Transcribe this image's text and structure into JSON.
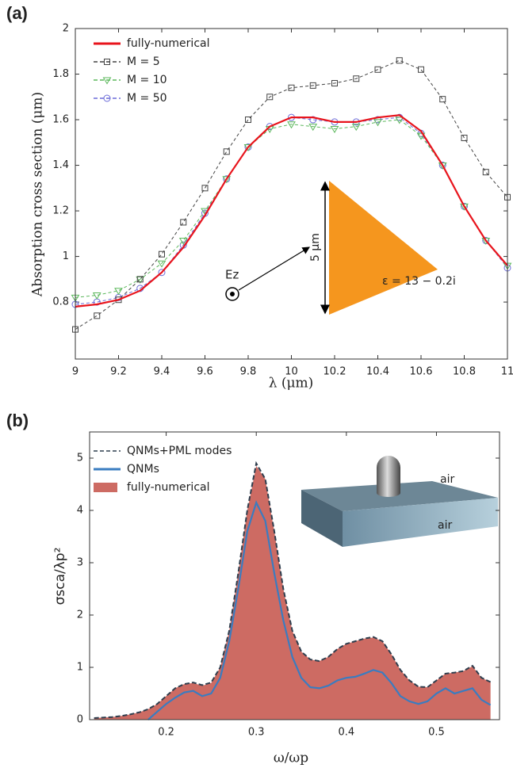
{
  "chart_data": [
    {
      "type": "line",
      "panel_label": "(a)",
      "x_label": "λ (μm)",
      "y_label": "Absorption cross section (μm)",
      "xlim": [
        9,
        11
      ],
      "xticks": [
        9,
        9.2,
        9.4,
        9.6,
        9.8,
        10,
        10.2,
        10.4,
        10.6,
        10.8,
        11
      ],
      "ylim": [
        0.55,
        2
      ],
      "yticks": [
        0.8,
        1,
        1.2,
        1.4,
        1.6,
        1.8,
        2
      ],
      "x": [
        9,
        9.1,
        9.2,
        9.3,
        9.4,
        9.5,
        9.6,
        9.7,
        9.8,
        9.9,
        10,
        10.1,
        10.2,
        10.3,
        10.4,
        10.5,
        10.6,
        10.7,
        10.8,
        10.9,
        11
      ],
      "series": [
        {
          "name": "fully-numerical",
          "color": "#e8141c",
          "values": [
            0.78,
            0.79,
            0.81,
            0.85,
            0.93,
            1.04,
            1.18,
            1.34,
            1.48,
            1.57,
            1.61,
            1.61,
            1.59,
            1.59,
            1.61,
            1.62,
            1.55,
            1.4,
            1.22,
            1.07,
            0.96
          ]
        },
        {
          "name": "M = 5",
          "color": "#444444",
          "dashed": true,
          "marker": "square",
          "values": [
            0.68,
            0.74,
            0.81,
            0.9,
            1.01,
            1.15,
            1.3,
            1.46,
            1.6,
            1.7,
            1.74,
            1.75,
            1.76,
            1.78,
            1.82,
            1.86,
            1.82,
            1.69,
            1.52,
            1.37,
            1.26
          ]
        },
        {
          "name": "M = 10",
          "color": "#5cb85c",
          "dashed": true,
          "marker": "triangle",
          "values": [
            0.82,
            0.83,
            0.85,
            0.9,
            0.97,
            1.07,
            1.2,
            1.34,
            1.48,
            1.56,
            1.58,
            1.57,
            1.56,
            1.57,
            1.59,
            1.6,
            1.53,
            1.4,
            1.22,
            1.07,
            0.96
          ]
        },
        {
          "name": "M = 50",
          "color": "#6b6bd8",
          "dashed": true,
          "marker": "circle",
          "values": [
            0.79,
            0.8,
            0.82,
            0.86,
            0.93,
            1.05,
            1.19,
            1.34,
            1.48,
            1.57,
            1.61,
            1.6,
            1.59,
            1.59,
            1.6,
            1.61,
            1.54,
            1.4,
            1.22,
            1.07,
            0.95
          ]
        }
      ],
      "annotations": [
        "Ez",
        "5 μm",
        "ε = 13 − 0.2i"
      ]
    },
    {
      "type": "area",
      "panel_label": "(b)",
      "x_label": "ω/ωp",
      "y_label": "σsca/λp²",
      "xlim": [
        0.115,
        0.57
      ],
      "xticks": [
        0.2,
        0.3,
        0.4,
        0.5
      ],
      "ylim": [
        0,
        5.5
      ],
      "yticks": [
        0,
        1,
        2,
        3,
        4,
        5
      ],
      "x": [
        0.12,
        0.13,
        0.14,
        0.15,
        0.16,
        0.17,
        0.18,
        0.19,
        0.2,
        0.21,
        0.22,
        0.23,
        0.24,
        0.25,
        0.26,
        0.27,
        0.28,
        0.29,
        0.3,
        0.31,
        0.32,
        0.33,
        0.34,
        0.35,
        0.36,
        0.37,
        0.38,
        0.39,
        0.4,
        0.41,
        0.42,
        0.43,
        0.44,
        0.45,
        0.46,
        0.47,
        0.48,
        0.49,
        0.5,
        0.51,
        0.52,
        0.53,
        0.54,
        0.55,
        0.56
      ],
      "series": [
        {
          "name": "QNMs+PML modes",
          "color": "#2f3e4e",
          "dashed": true,
          "values": [
            0.03,
            0.04,
            0.05,
            0.07,
            0.1,
            0.14,
            0.2,
            0.3,
            0.45,
            0.6,
            0.68,
            0.71,
            0.66,
            0.71,
            1.0,
            1.7,
            2.8,
            4.0,
            4.9,
            4.6,
            3.6,
            2.5,
            1.7,
            1.3,
            1.15,
            1.12,
            1.2,
            1.35,
            1.45,
            1.5,
            1.55,
            1.58,
            1.5,
            1.25,
            0.95,
            0.75,
            0.63,
            0.62,
            0.75,
            0.88,
            0.9,
            0.93,
            1.03,
            0.8,
            0.72
          ]
        },
        {
          "name": "QNMs",
          "color": "#3a7cc0",
          "values": [
            null,
            null,
            null,
            null,
            null,
            null,
            0,
            0.15,
            0.3,
            0.42,
            0.52,
            0.55,
            0.45,
            0.5,
            0.8,
            1.5,
            2.5,
            3.6,
            4.15,
            3.8,
            2.8,
            1.9,
            1.2,
            0.8,
            0.62,
            0.6,
            0.65,
            0.75,
            0.8,
            0.82,
            0.88,
            0.95,
            0.9,
            0.7,
            0.45,
            0.35,
            0.3,
            0.35,
            0.5,
            0.6,
            0.5,
            0.55,
            0.6,
            0.38,
            0.28
          ]
        },
        {
          "name": "fully-numerical",
          "color": "#cd6b63",
          "fill": true,
          "values": [
            0.03,
            0.04,
            0.05,
            0.07,
            0.1,
            0.14,
            0.2,
            0.3,
            0.45,
            0.6,
            0.68,
            0.7,
            0.65,
            0.7,
            1.0,
            1.7,
            2.8,
            4.0,
            4.85,
            4.6,
            3.6,
            2.5,
            1.7,
            1.3,
            1.15,
            1.12,
            1.2,
            1.35,
            1.45,
            1.5,
            1.55,
            1.57,
            1.5,
            1.25,
            0.95,
            0.75,
            0.63,
            0.62,
            0.75,
            0.88,
            0.9,
            0.93,
            1.02,
            0.8,
            0.72
          ]
        }
      ],
      "annotations": [
        "air",
        "air"
      ]
    }
  ]
}
